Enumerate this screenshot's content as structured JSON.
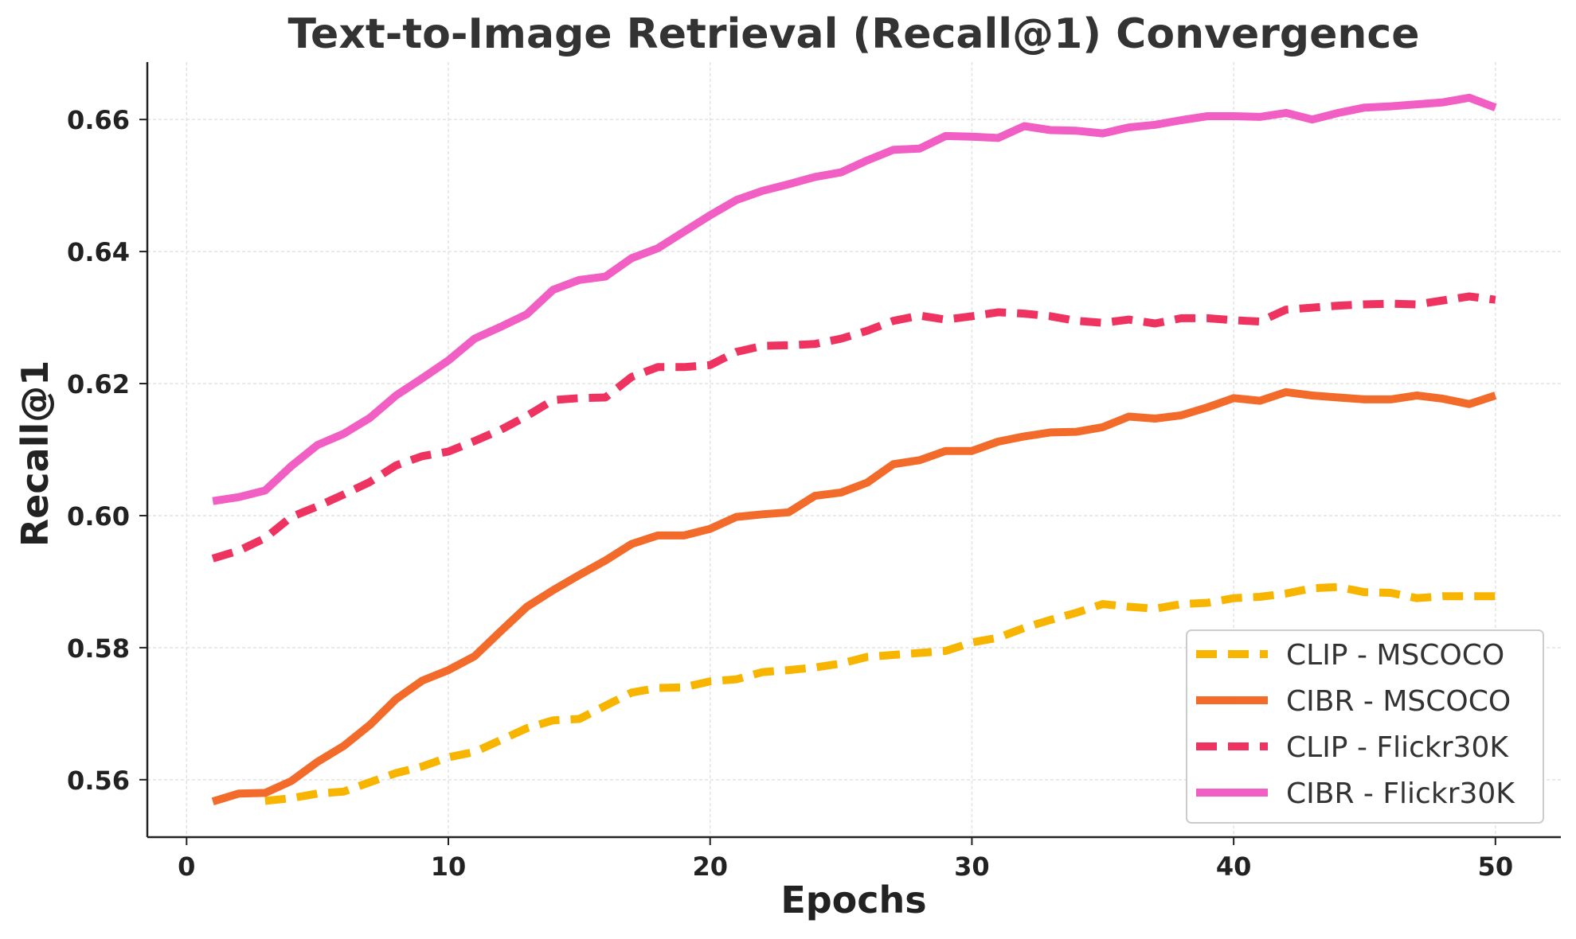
{
  "chart_data": {
    "type": "line",
    "title": "Text-to-Image Retrieval (Recall@1) Convergence",
    "xlabel": "Epochs",
    "ylabel": "Recall@1",
    "xlim": [
      -1.5,
      52.5
    ],
    "ylim": [
      0.5513,
      0.6687
    ],
    "xticks": [
      0,
      10,
      20,
      30,
      40,
      50
    ],
    "yticks": [
      0.56,
      0.58,
      0.6,
      0.62,
      0.64,
      0.66
    ],
    "xtick_labels": [
      "0",
      "10",
      "20",
      "30",
      "40",
      "50"
    ],
    "ytick_labels": [
      "0.56",
      "0.58",
      "0.60",
      "0.62",
      "0.64",
      "0.66"
    ],
    "grid": true,
    "legend_position": "lower-right",
    "series": [
      {
        "name": "CLIP - MSCOCO",
        "color": "#f7b500",
        "style": "dashed",
        "x": [
          3,
          4,
          5,
          6,
          7,
          8,
          9,
          10,
          11,
          12,
          13,
          14,
          15,
          16,
          17,
          18,
          19,
          20,
          21,
          22,
          23,
          24,
          25,
          26,
          27,
          28,
          29,
          30,
          31,
          32,
          33,
          34,
          35,
          36,
          37,
          38,
          39,
          40,
          41,
          42,
          43,
          44,
          45,
          46,
          47,
          48,
          49,
          50
        ],
        "values": [
          0.5568,
          0.5572,
          0.5579,
          0.5582,
          0.5596,
          0.561,
          0.562,
          0.5634,
          0.5642,
          0.566,
          0.5678,
          0.569,
          0.5692,
          0.5712,
          0.5732,
          0.5739,
          0.574,
          0.5749,
          0.5752,
          0.5763,
          0.5766,
          0.577,
          0.5776,
          0.5786,
          0.5789,
          0.5792,
          0.5795,
          0.5808,
          0.5815,
          0.583,
          0.5842,
          0.5853,
          0.5866,
          0.5862,
          0.5859,
          0.5866,
          0.5868,
          0.5875,
          0.5877,
          0.5882,
          0.589,
          0.5892,
          0.5884,
          0.5883,
          0.5875,
          0.5878,
          0.5878,
          0.5878
        ]
      },
      {
        "name": "CIBR - MSCOCO",
        "color": "#f26b2a",
        "style": "solid",
        "x": [
          1,
          2,
          3,
          4,
          5,
          6,
          7,
          8,
          9,
          10,
          11,
          12,
          13,
          14,
          15,
          16,
          17,
          18,
          19,
          20,
          21,
          22,
          23,
          24,
          25,
          26,
          27,
          28,
          29,
          30,
          31,
          32,
          33,
          34,
          35,
          36,
          37,
          38,
          39,
          40,
          41,
          42,
          43,
          44,
          45,
          46,
          47,
          48,
          49,
          50
        ],
        "values": [
          0.5567,
          0.5579,
          0.558,
          0.5598,
          0.5627,
          0.5651,
          0.5683,
          0.5722,
          0.575,
          0.5766,
          0.5787,
          0.5825,
          0.5862,
          0.5887,
          0.591,
          0.5932,
          0.5957,
          0.597,
          0.597,
          0.598,
          0.5998,
          0.6002,
          0.6005,
          0.603,
          0.6035,
          0.605,
          0.6078,
          0.6084,
          0.6098,
          0.6098,
          0.6112,
          0.612,
          0.6126,
          0.6127,
          0.6134,
          0.615,
          0.6147,
          0.6152,
          0.6164,
          0.6178,
          0.6174,
          0.6187,
          0.6182,
          0.6179,
          0.6176,
          0.6176,
          0.6182,
          0.6177,
          0.6169,
          0.6182
        ]
      },
      {
        "name": "CLIP - Flickr30K",
        "color": "#ef3360",
        "style": "dashed",
        "x": [
          1,
          2,
          3,
          4,
          5,
          6,
          7,
          8,
          9,
          10,
          11,
          12,
          13,
          14,
          15,
          16,
          17,
          18,
          19,
          20,
          21,
          22,
          23,
          24,
          25,
          26,
          27,
          28,
          29,
          30,
          31,
          32,
          33,
          34,
          35,
          36,
          37,
          38,
          39,
          40,
          41,
          42,
          43,
          44,
          45,
          46,
          47,
          48,
          49,
          50
        ],
        "values": [
          0.5935,
          0.5947,
          0.5966,
          0.5998,
          0.6014,
          0.6032,
          0.6051,
          0.6076,
          0.609,
          0.6097,
          0.6113,
          0.613,
          0.6151,
          0.6175,
          0.6178,
          0.6179,
          0.621,
          0.6225,
          0.6225,
          0.6228,
          0.6248,
          0.6257,
          0.6258,
          0.626,
          0.6268,
          0.628,
          0.6295,
          0.6303,
          0.6297,
          0.6302,
          0.6308,
          0.6306,
          0.6302,
          0.6295,
          0.6292,
          0.6297,
          0.6291,
          0.6299,
          0.6299,
          0.6296,
          0.6294,
          0.6312,
          0.6315,
          0.6318,
          0.632,
          0.6321,
          0.632,
          0.6326,
          0.6332,
          0.6327
        ]
      },
      {
        "name": "CIBR - Flickr30K",
        "color": "#f25fc4",
        "style": "solid",
        "x": [
          1,
          2,
          3,
          4,
          5,
          6,
          7,
          8,
          9,
          10,
          11,
          12,
          13,
          14,
          15,
          16,
          17,
          18,
          19,
          20,
          21,
          22,
          23,
          24,
          25,
          26,
          27,
          28,
          29,
          30,
          31,
          32,
          33,
          34,
          35,
          36,
          37,
          38,
          39,
          40,
          41,
          42,
          43,
          44,
          45,
          46,
          47,
          48,
          49,
          50
        ],
        "values": [
          0.6022,
          0.6028,
          0.6038,
          0.6075,
          0.6107,
          0.6124,
          0.6148,
          0.6182,
          0.6208,
          0.6235,
          0.6268,
          0.6286,
          0.6305,
          0.6342,
          0.6357,
          0.6362,
          0.639,
          0.6405,
          0.643,
          0.6455,
          0.6478,
          0.6492,
          0.6502,
          0.6513,
          0.652,
          0.6538,
          0.6554,
          0.6556,
          0.6575,
          0.6574,
          0.6572,
          0.659,
          0.6584,
          0.6583,
          0.6579,
          0.6588,
          0.6592,
          0.6599,
          0.6605,
          0.6605,
          0.6604,
          0.661,
          0.66,
          0.661,
          0.6618,
          0.662,
          0.6623,
          0.6626,
          0.6633,
          0.6618
        ]
      }
    ]
  }
}
